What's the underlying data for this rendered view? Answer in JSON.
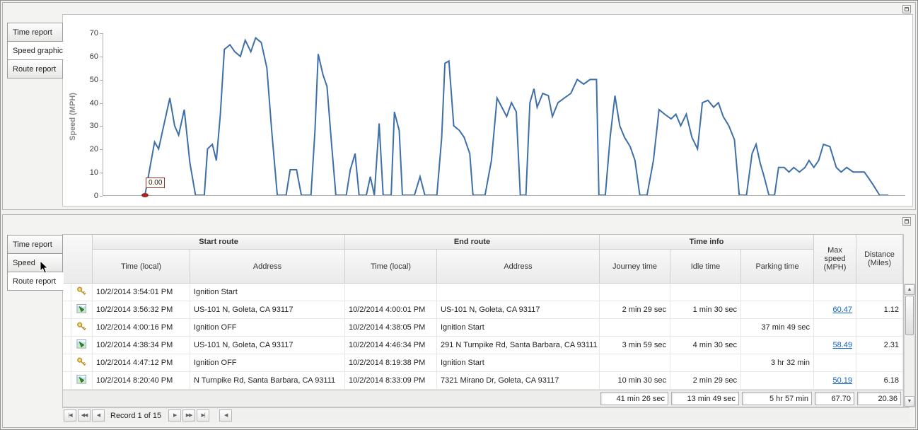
{
  "colors": {
    "chart_line": "#3f6fa8",
    "marker": "#aa2222",
    "link": "#0d62c9"
  },
  "icons": {
    "scroll_up": "▲",
    "scroll_down": "▼"
  },
  "top_panel": {
    "tabs": [
      {
        "label": "Time report",
        "active": false
      },
      {
        "label": "Speed graphic",
        "active": true
      },
      {
        "label": "Route report",
        "active": false
      }
    ],
    "chart_data": {
      "type": "line",
      "title": "",
      "xlabel": "",
      "ylabel": "Speed (MPH)",
      "ylim": [
        0,
        70
      ],
      "yticks": [
        0,
        10,
        20,
        30,
        40,
        50,
        60,
        70
      ],
      "grid": false,
      "legend": "none",
      "marker_label": "0.00",
      "points": [
        [
          52,
          0
        ],
        [
          64,
          23
        ],
        [
          69,
          20
        ],
        [
          76,
          31
        ],
        [
          83,
          42
        ],
        [
          89,
          30
        ],
        [
          94,
          26
        ],
        [
          101,
          37
        ],
        [
          108,
          14
        ],
        [
          115,
          0
        ],
        [
          126,
          0
        ],
        [
          130,
          20
        ],
        [
          136,
          22
        ],
        [
          141,
          15
        ],
        [
          146,
          35
        ],
        [
          151,
          63
        ],
        [
          158,
          65
        ],
        [
          164,
          62
        ],
        [
          171,
          60
        ],
        [
          177,
          67
        ],
        [
          184,
          62
        ],
        [
          190,
          68
        ],
        [
          197,
          66
        ],
        [
          204,
          55
        ],
        [
          210,
          28
        ],
        [
          217,
          0
        ],
        [
          228,
          0
        ],
        [
          233,
          11
        ],
        [
          241,
          11
        ],
        [
          247,
          0
        ],
        [
          259,
          0
        ],
        [
          264,
          28
        ],
        [
          268,
          61
        ],
        [
          274,
          52
        ],
        [
          279,
          47
        ],
        [
          284,
          25
        ],
        [
          290,
          0
        ],
        [
          303,
          0
        ],
        [
          308,
          11
        ],
        [
          314,
          18
        ],
        [
          319,
          0
        ],
        [
          328,
          0
        ],
        [
          333,
          8
        ],
        [
          338,
          0
        ],
        [
          344,
          31
        ],
        [
          349,
          0
        ],
        [
          359,
          0
        ],
        [
          363,
          36
        ],
        [
          369,
          28
        ],
        [
          373,
          0
        ],
        [
          388,
          0
        ],
        [
          395,
          8
        ],
        [
          401,
          0
        ],
        [
          416,
          0
        ],
        [
          422,
          25
        ],
        [
          426,
          57
        ],
        [
          431,
          58
        ],
        [
          437,
          30
        ],
        [
          444,
          28
        ],
        [
          450,
          25
        ],
        [
          457,
          18
        ],
        [
          461,
          0
        ],
        [
          476,
          0
        ],
        [
          484,
          15
        ],
        [
          491,
          42
        ],
        [
          497,
          38
        ],
        [
          503,
          34
        ],
        [
          509,
          40
        ],
        [
          515,
          36
        ],
        [
          520,
          0
        ],
        [
          527,
          0
        ],
        [
          532,
          40
        ],
        [
          537,
          46
        ],
        [
          541,
          38
        ],
        [
          548,
          44
        ],
        [
          555,
          43
        ],
        [
          560,
          34
        ],
        [
          567,
          40
        ],
        [
          575,
          42
        ],
        [
          583,
          44
        ],
        [
          591,
          50
        ],
        [
          599,
          48
        ],
        [
          607,
          50
        ],
        [
          615,
          50
        ],
        [
          618,
          0
        ],
        [
          626,
          0
        ],
        [
          632,
          25
        ],
        [
          638,
          43
        ],
        [
          644,
          30
        ],
        [
          650,
          25
        ],
        [
          657,
          21
        ],
        [
          663,
          15
        ],
        [
          669,
          0
        ],
        [
          678,
          0
        ],
        [
          686,
          15
        ],
        [
          693,
          37
        ],
        [
          700,
          35
        ],
        [
          708,
          33
        ],
        [
          714,
          35
        ],
        [
          720,
          30
        ],
        [
          727,
          35
        ],
        [
          734,
          25
        ],
        [
          741,
          20
        ],
        [
          747,
          40
        ],
        [
          754,
          41
        ],
        [
          761,
          38
        ],
        [
          767,
          40
        ],
        [
          773,
          34
        ],
        [
          780,
          30
        ],
        [
          787,
          24
        ],
        [
          793,
          0
        ],
        [
          802,
          0
        ],
        [
          809,
          18
        ],
        [
          814,
          22
        ],
        [
          819,
          14
        ],
        [
          824,
          8
        ],
        [
          830,
          0
        ],
        [
          837,
          0
        ],
        [
          842,
          12
        ],
        [
          849,
          12
        ],
        [
          855,
          10
        ],
        [
          861,
          12
        ],
        [
          868,
          10
        ],
        [
          875,
          12
        ],
        [
          880,
          15
        ],
        [
          886,
          12
        ],
        [
          892,
          15
        ],
        [
          898,
          22
        ],
        [
          906,
          21
        ],
        [
          914,
          12
        ],
        [
          920,
          10
        ],
        [
          927,
          12
        ],
        [
          935,
          10
        ],
        [
          949,
          10
        ],
        [
          959,
          5
        ],
        [
          968,
          0
        ],
        [
          979,
          0
        ]
      ]
    }
  },
  "bottom_panel": {
    "tabs": [
      {
        "label": "Time report",
        "active": false
      },
      {
        "label": "Speed graphic",
        "active": false
      },
      {
        "label": "Route report",
        "active": true
      }
    ],
    "table": {
      "group_headers": [
        {
          "label": "Start route",
          "span": 2
        },
        {
          "label": "End route",
          "span": 2
        },
        {
          "label": "Time info",
          "span": 3
        }
      ],
      "columns": [
        "Time (local)",
        "Address",
        "Time (local)",
        "Address",
        "Journey time",
        "Idle time",
        "Parking time",
        "Max speed (MPH)",
        "Distance (Miles)"
      ],
      "rows": [
        {
          "icon": "key",
          "link": false,
          "cells": [
            "10/2/2014 3:54:01 PM",
            "Ignition Start",
            "",
            "",
            "",
            "",
            "",
            "",
            ""
          ]
        },
        {
          "icon": "route",
          "link": true,
          "cells": [
            "10/2/2014 3:56:32 PM",
            "US-101 N, Goleta, CA 93117",
            "10/2/2014 4:00:01 PM",
            "US-101 N, Goleta, CA 93117",
            "2 min 29 sec",
            "1 min 30 sec",
            "",
            "60.47",
            "1.12"
          ]
        },
        {
          "icon": "key",
          "link": false,
          "cells": [
            "10/2/2014 4:00:16 PM",
            "Ignition OFF",
            "10/2/2014 4:38:05 PM",
            "Ignition Start",
            "",
            "",
            "37 min 49 sec",
            "",
            ""
          ]
        },
        {
          "icon": "route",
          "link": true,
          "cells": [
            "10/2/2014 4:38:34 PM",
            "US-101 N, Goleta, CA 93117",
            "10/2/2014 4:46:34 PM",
            "291 N Turnpike Rd, Santa Barbara, CA 93111",
            "3 min 59 sec",
            "4 min 30 sec",
            "",
            "58.49",
            "2.31"
          ]
        },
        {
          "icon": "key",
          "link": false,
          "cells": [
            "10/2/2014 4:47:12 PM",
            "Ignition OFF",
            "10/2/2014 8:19:38 PM",
            "Ignition Start",
            "",
            "",
            "3 hr 32 min",
            "",
            ""
          ]
        },
        {
          "icon": "route",
          "link": true,
          "cells": [
            "10/2/2014 8:20:40 PM",
            "N Turnpike Rd, Santa Barbara, CA 93111",
            "10/2/2014 8:33:09 PM",
            "7321 Mirano Dr, Goleta, CA 93117",
            "10 min 30 sec",
            "2 min 29 sec",
            "",
            "50.19",
            "6.18"
          ]
        }
      ],
      "summary": {
        "journey": "41 min 26 sec",
        "idle": "13 min 49 sec",
        "parking": "5 hr 57 min",
        "max_speed": "67.70",
        "distance": "20.36"
      }
    },
    "navigator": {
      "record_text": "Record 1 of 15",
      "buttons_left": [
        {
          "name": "first",
          "glyph": "|◀"
        },
        {
          "name": "prev-page",
          "glyph": "◀◀"
        },
        {
          "name": "prev",
          "glyph": "◀"
        }
      ],
      "buttons_right": [
        {
          "name": "next",
          "glyph": "▶"
        },
        {
          "name": "next-page",
          "glyph": "▶▶"
        },
        {
          "name": "last",
          "glyph": "▶|"
        }
      ],
      "hscroll_left_glyph": "◀"
    }
  }
}
